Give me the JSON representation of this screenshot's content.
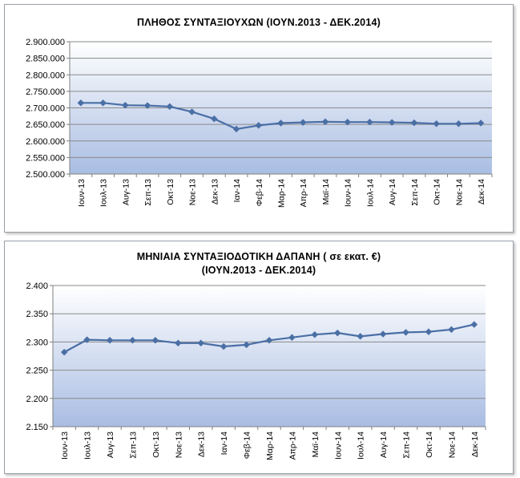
{
  "chart_data": [
    {
      "type": "line",
      "title": "ΠΛΗΘΟΣ ΣΥΝΤΑΞΙΟΥΧΩΝ (ΙΟΥΝ.2013 - ΔΕΚ.2014)",
      "xlabel": "",
      "ylabel": "",
      "categories": [
        "Ιουν-13",
        "Ιουλ-13",
        "Αυγ-13",
        "Σεπ-13",
        "Οκτ-13",
        "Νοε-13",
        "Δεκ-13",
        "Ιαν-14",
        "Φεβ-14",
        "Μαρ-14",
        "Απρ-14",
        "Μαϊ-14",
        "Ιουν-14",
        "Ιουλ-14",
        "Αυγ-14",
        "Σεπ-14",
        "Οκτ-14",
        "Νοε-14",
        "Δεκ-14"
      ],
      "values": [
        2715000,
        2715000,
        2708000,
        2707000,
        2704000,
        2688000,
        2667000,
        2636000,
        2647000,
        2654000,
        2656000,
        2658000,
        2657000,
        2657000,
        2656000,
        2655000,
        2652000,
        2652000,
        2654000
      ],
      "ylim": [
        2500000,
        2900000
      ],
      "yticks": [
        2500000,
        2550000,
        2600000,
        2650000,
        2700000,
        2750000,
        2800000,
        2850000,
        2900000
      ],
      "ytick_labels": [
        "2.500.000",
        "2.550.000",
        "2.600.000",
        "2.650.000",
        "2.700.000",
        "2.750.000",
        "2.800.000",
        "2.850.000",
        "2.900.000"
      ],
      "grid": true,
      "series_color": "#4a6fa5"
    },
    {
      "type": "line",
      "title_lines": [
        "ΜΗΝΙΑΙΑ ΣΥΝΤΑΞΙΟΔΟΤΙΚΗ ΔΑΠΑΝΗ ( σε εκατ. €)",
        "(ΙΟΥΝ.2013 - ΔΕΚ.2014)"
      ],
      "xlabel": "",
      "ylabel": "",
      "categories": [
        "Ιουν-13",
        "Ιουλ-13",
        "Αυγ-13",
        "Σεπ-13",
        "Οκτ-13",
        "Νοε-13",
        "Δεκ-13",
        "Ιαν-14",
        "Φεβ-14",
        "Μαρ-14",
        "Απρ-14",
        "Μαϊ-14",
        "Ιουν-14",
        "Ιουλ-14",
        "Αυγ-14",
        "Σεπ-14",
        "Οκτ-14",
        "Νοε-14",
        "Δεκ-14"
      ],
      "values": [
        2282,
        2304,
        2303,
        2303,
        2303,
        2298,
        2298,
        2292,
        2295,
        2303,
        2308,
        2313,
        2316,
        2310,
        2314,
        2317,
        2318,
        2322,
        2331
      ],
      "ylim": [
        2150,
        2400
      ],
      "yticks": [
        2150,
        2200,
        2250,
        2300,
        2350,
        2400
      ],
      "ytick_labels": [
        "2.150",
        "2.200",
        "2.250",
        "2.300",
        "2.350",
        "2.400"
      ],
      "grid": true,
      "series_color": "#4a6fa5"
    }
  ]
}
